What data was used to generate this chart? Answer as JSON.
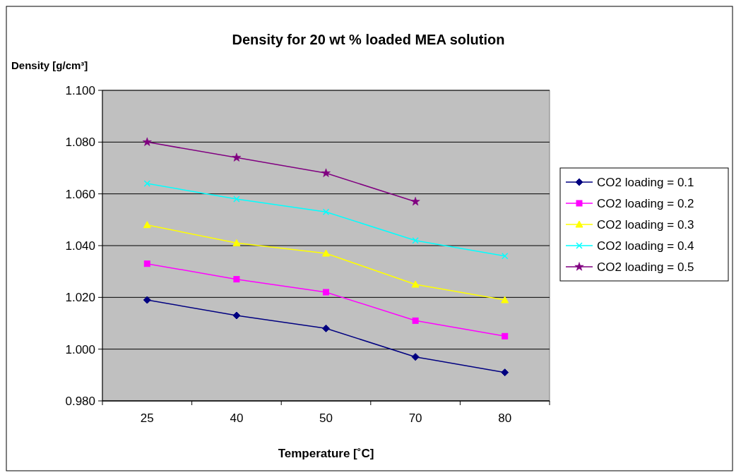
{
  "chart_data": {
    "type": "line",
    "title": "Density for 20 wt % loaded MEA solution",
    "xlabel": "Temperature [˚C]",
    "ylabel": "Density [g/cm³]",
    "categories": [
      "25",
      "40",
      "50",
      "70",
      "80"
    ],
    "series": [
      {
        "name": "CO2 loading = 0.1",
        "color": "#000080",
        "marker": "diamond",
        "values": [
          1.019,
          1.013,
          1.008,
          0.997,
          0.991
        ]
      },
      {
        "name": "CO2 loading = 0.2",
        "color": "#ff00ff",
        "marker": "square",
        "values": [
          1.033,
          1.027,
          1.022,
          1.011,
          1.005
        ]
      },
      {
        "name": "CO2 loading = 0.3",
        "color": "#ffff00",
        "marker": "triangle",
        "values": [
          1.048,
          1.041,
          1.037,
          1.025,
          1.019
        ]
      },
      {
        "name": "CO2 loading = 0.4",
        "color": "#00ffff",
        "marker": "cross",
        "values": [
          1.064,
          1.058,
          1.053,
          1.042,
          1.036
        ]
      },
      {
        "name": "CO2 loading = 0.5",
        "color": "#800080",
        "marker": "star",
        "values": [
          1.08,
          1.074,
          1.068,
          1.057,
          null
        ]
      }
    ],
    "ylim": [
      0.98,
      1.1
    ],
    "yticks": [
      {
        "value": 0.98,
        "label": "0.980"
      },
      {
        "value": 1.0,
        "label": "1.000"
      },
      {
        "value": 1.02,
        "label": "1.020"
      },
      {
        "value": 1.04,
        "label": "1.040"
      },
      {
        "value": 1.06,
        "label": "1.060"
      },
      {
        "value": 1.08,
        "label": "1.080"
      },
      {
        "value": 1.1,
        "label": "1.100"
      }
    ],
    "grid": "y",
    "legend": "right"
  }
}
